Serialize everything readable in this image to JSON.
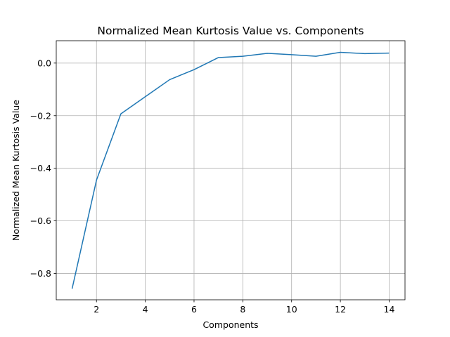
{
  "chart_data": {
    "type": "line",
    "title": "Normalized Mean Kurtosis Value vs. Components",
    "xlabel": "Components",
    "ylabel": "Normalized Mean Kurtosis Value",
    "xlim": [
      0.35,
      14.65
    ],
    "ylim": [
      -0.9,
      0.085
    ],
    "xticks": [
      2,
      4,
      6,
      8,
      10,
      12,
      14
    ],
    "xtick_labels": [
      "2",
      "4",
      "6",
      "8",
      "10",
      "12",
      "14"
    ],
    "yticks": [
      -0.8,
      -0.6,
      -0.4,
      -0.2,
      0.0
    ],
    "ytick_labels": [
      "−0.8",
      "−0.6",
      "−0.4",
      "−0.2",
      "0.0"
    ],
    "grid": true,
    "color": "#1f77b4",
    "series": [
      {
        "x": [
          1,
          2,
          3,
          4,
          5,
          6,
          7,
          8,
          9,
          10,
          11,
          12,
          13,
          14
        ],
        "values": [
          -0.858,
          -0.445,
          -0.193,
          -0.128,
          -0.063,
          -0.025,
          0.021,
          0.026,
          0.037,
          0.032,
          0.026,
          0.041,
          0.036,
          0.038
        ]
      }
    ]
  }
}
